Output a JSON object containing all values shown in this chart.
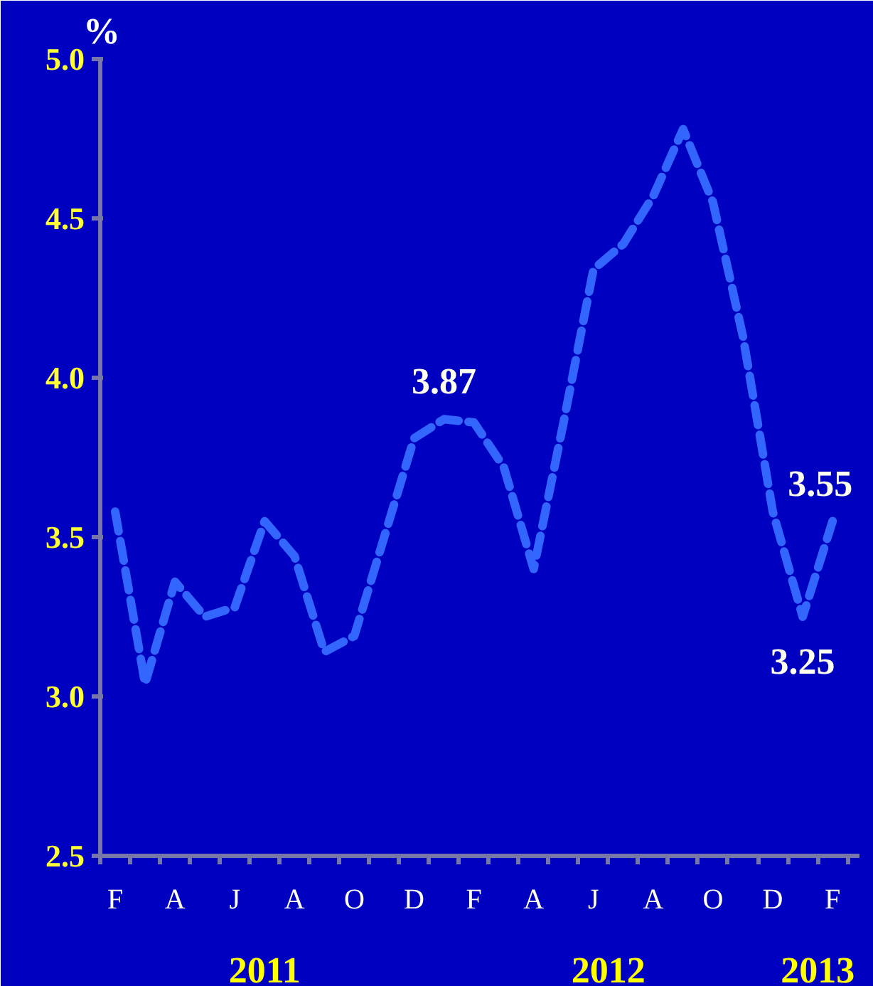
{
  "chart_data": {
    "type": "line",
    "ylabel": "%",
    "categories": [
      "F",
      null,
      "A",
      null,
      "J",
      null,
      "A",
      null,
      "O",
      null,
      "D",
      null,
      "F",
      null,
      "A",
      null,
      "J",
      null,
      "A",
      null,
      "O",
      null,
      "D",
      null,
      "F"
    ],
    "series": [
      {
        "color": "#3366ff",
        "values": [
          3.58,
          3.04,
          3.36,
          3.25,
          3.28,
          3.55,
          3.44,
          3.14,
          3.19,
          3.5,
          3.81,
          3.87,
          3.86,
          3.72,
          3.4,
          3.86,
          4.34,
          4.42,
          4.57,
          4.78,
          4.55,
          4.13,
          3.58,
          3.25,
          3.55
        ],
        "value_labels": [
          null,
          null,
          null,
          null,
          null,
          null,
          null,
          null,
          null,
          null,
          null,
          "3.87",
          null,
          null,
          null,
          null,
          null,
          null,
          null,
          null,
          null,
          null,
          null,
          "3.25",
          "3.55"
        ]
      }
    ],
    "ylim": [
      2.5,
      5.0
    ],
    "yticks": [
      2.5,
      {
        "value": 3,
        "label": "3.0"
      },
      3.5,
      {
        "value": 4,
        "label": "4.0"
      },
      4.5,
      {
        "value": 5,
        "label": "5.0"
      }
    ],
    "grid": false,
    "marker": "none",
    "line_style": "dashed",
    "annotations": [
      "2011",
      "2012",
      "2013"
    ]
  }
}
